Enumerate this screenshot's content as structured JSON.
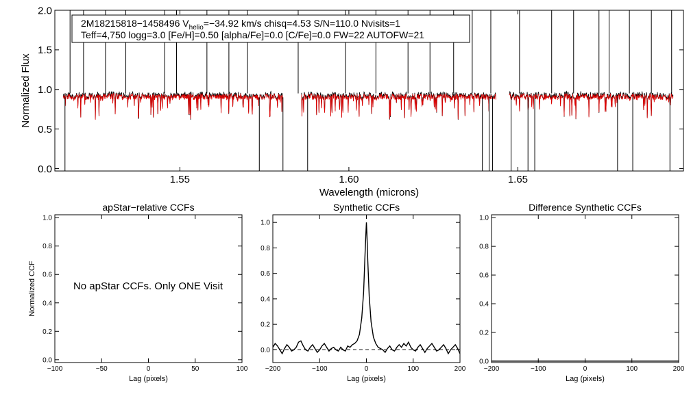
{
  "chart_data": [
    {
      "type": "line",
      "id": "spectrum",
      "xlabel": "Wavelength (microns)",
      "ylabel": "Normalized Flux",
      "xlim": [
        1.513,
        1.699
      ],
      "ylim": [
        -0.03,
        2.0
      ],
      "xticks": [
        1.55,
        1.6,
        1.65
      ],
      "xtick_labels": [
        "1.55",
        "1.60",
        "1.65"
      ],
      "yticks": [
        0.0,
        0.5,
        1.0,
        1.5,
        2.0
      ],
      "ytick_labels": [
        "0.0",
        "0.5",
        "1.0",
        "1.5",
        "2.0"
      ],
      "chips": [
        [
          1.5155,
          1.5805
        ],
        [
          1.586,
          1.6435
        ],
        [
          1.6475,
          1.696
        ]
      ],
      "series": [
        {
          "name": "observed",
          "color": "#000000",
          "continuum": 0.96
        },
        {
          "name": "model",
          "color": "#e00000",
          "continuum": 0.95
        }
      ],
      "spikes_up": [
        1.5175,
        1.5215,
        1.528,
        1.534,
        1.5455,
        1.549,
        1.558,
        1.5645,
        1.57,
        1.585,
        1.599,
        1.608,
        1.6175,
        1.624,
        1.631,
        1.6365,
        1.642,
        1.6505,
        1.66,
        1.6665,
        1.674,
        1.677,
        1.683,
        1.6895,
        1.6955
      ],
      "spikes_down": [
        1.516,
        1.5735,
        1.5805,
        1.5878,
        1.6395,
        1.6415,
        1.6425,
        1.648,
        1.653,
        1.655,
        1.6795,
        1.684,
        1.695
      ],
      "annotation": {
        "line1_prefix": "2M18215818−1458496  V",
        "line1_sub": "helio",
        "line1_suffix": "=−34.92 km/s  chisq=4.53  S/N=110.0  Nvisits=1",
        "line2": "Teff=4,750 logg=3.0 [Fe/H]=0.50 [alpha/Fe]=0.0 [C/Fe]=0.0 FW=22 AUTOFW=21"
      }
    },
    {
      "type": "line",
      "id": "apstar-ccf",
      "title": "apStar−relative CCFs",
      "xlabel": "Lag (pixels)",
      "ylabel": "Normalized CCF",
      "xlim": [
        -100,
        100
      ],
      "ylim": [
        -0.02,
        1.02
      ],
      "xticks": [
        -100,
        -50,
        0,
        50,
        100
      ],
      "xtick_labels": [
        "−100",
        "−50",
        "0",
        "50",
        "100"
      ],
      "yticks": [
        0.0,
        0.2,
        0.4,
        0.6,
        0.8,
        1.0
      ],
      "ytick_labels": [
        "0.0",
        "0.2",
        "0.4",
        "0.6",
        "0.8",
        "1.0"
      ],
      "message": "No apStar CCFs.  Only ONE Visit",
      "series": []
    },
    {
      "type": "line",
      "id": "synthetic-ccf",
      "title": "Synthetic CCFs",
      "xlabel": "Lag (pixels)",
      "ylabel": "",
      "xlim": [
        -200,
        200
      ],
      "ylim": [
        -0.1,
        1.06
      ],
      "xticks": [
        -200,
        -100,
        0,
        100,
        200
      ],
      "xtick_labels": [
        "−200",
        "−100",
        "0",
        "100",
        "200"
      ],
      "yticks": [
        0.0,
        0.2,
        0.4,
        0.6,
        0.8,
        1.0
      ],
      "ytick_labels": [
        "0.0",
        "0.2",
        "0.4",
        "0.6",
        "0.8",
        "1.0"
      ],
      "baseline": 0.0,
      "series": [
        {
          "name": "ccf",
          "x": [
            -200,
            -195,
            -190,
            -185,
            -180,
            -175,
            -170,
            -165,
            -160,
            -155,
            -150,
            -145,
            -140,
            -135,
            -130,
            -125,
            -120,
            -115,
            -110,
            -105,
            -100,
            -95,
            -90,
            -85,
            -80,
            -75,
            -70,
            -65,
            -60,
            -55,
            -50,
            -45,
            -40,
            -35,
            -30,
            -25,
            -20,
            -15,
            -10,
            -6,
            -3,
            -1,
            0,
            1,
            3,
            6,
            10,
            15,
            20,
            25,
            30,
            35,
            40,
            45,
            50,
            55,
            60,
            65,
            70,
            75,
            80,
            85,
            90,
            95,
            100,
            105,
            110,
            115,
            120,
            125,
            130,
            135,
            140,
            145,
            150,
            155,
            160,
            165,
            170,
            175,
            180,
            185,
            190,
            195,
            200
          ],
          "y": [
            0.02,
            0.05,
            0.03,
            0.0,
            -0.03,
            0.01,
            0.04,
            0.02,
            -0.01,
            0.0,
            0.02,
            0.06,
            0.07,
            0.03,
            0.0,
            -0.01,
            0.02,
            0.04,
            0.01,
            -0.02,
            0.0,
            0.03,
            0.05,
            0.02,
            -0.01,
            0.01,
            0.02,
            0.0,
            -0.01,
            0.02,
            0.0,
            -0.01,
            0.03,
            0.02,
            0.04,
            0.05,
            0.07,
            0.12,
            0.25,
            0.45,
            0.75,
            0.92,
            1.0,
            0.92,
            0.7,
            0.42,
            0.22,
            0.1,
            0.05,
            0.02,
            0.01,
            0.0,
            -0.02,
            0.01,
            0.03,
            0.0,
            -0.01,
            0.02,
            0.04,
            0.02,
            0.05,
            0.03,
            0.06,
            0.02,
            0.0,
            -0.01,
            0.02,
            0.04,
            0.01,
            -0.02,
            0.01,
            0.03,
            0.05,
            0.02,
            -0.01,
            0.0,
            0.02,
            0.04,
            0.01,
            -0.03,
            0.0,
            0.02,
            0.04,
            0.01,
            -0.03
          ]
        }
      ]
    },
    {
      "type": "line",
      "id": "difference-ccf",
      "title": "Difference Synthetic CCFs",
      "xlabel": "Lag (pixels)",
      "ylabel": "",
      "xlim": [
        -200,
        200
      ],
      "ylim": [
        -0.01,
        1.02
      ],
      "xticks": [
        -200,
        -100,
        0,
        100,
        200
      ],
      "xtick_labels": [
        "−200",
        "−100",
        "0",
        "100",
        "200"
      ],
      "yticks": [
        0.0,
        0.2,
        0.4,
        0.6,
        0.8,
        1.0
      ],
      "ytick_labels": [
        "0.0",
        "0.2",
        "0.4",
        "0.6",
        "0.8",
        "1.0"
      ],
      "series": [
        {
          "name": "difference",
          "x": [
            -200,
            200
          ],
          "y": [
            0.0,
            0.0
          ]
        }
      ]
    }
  ]
}
